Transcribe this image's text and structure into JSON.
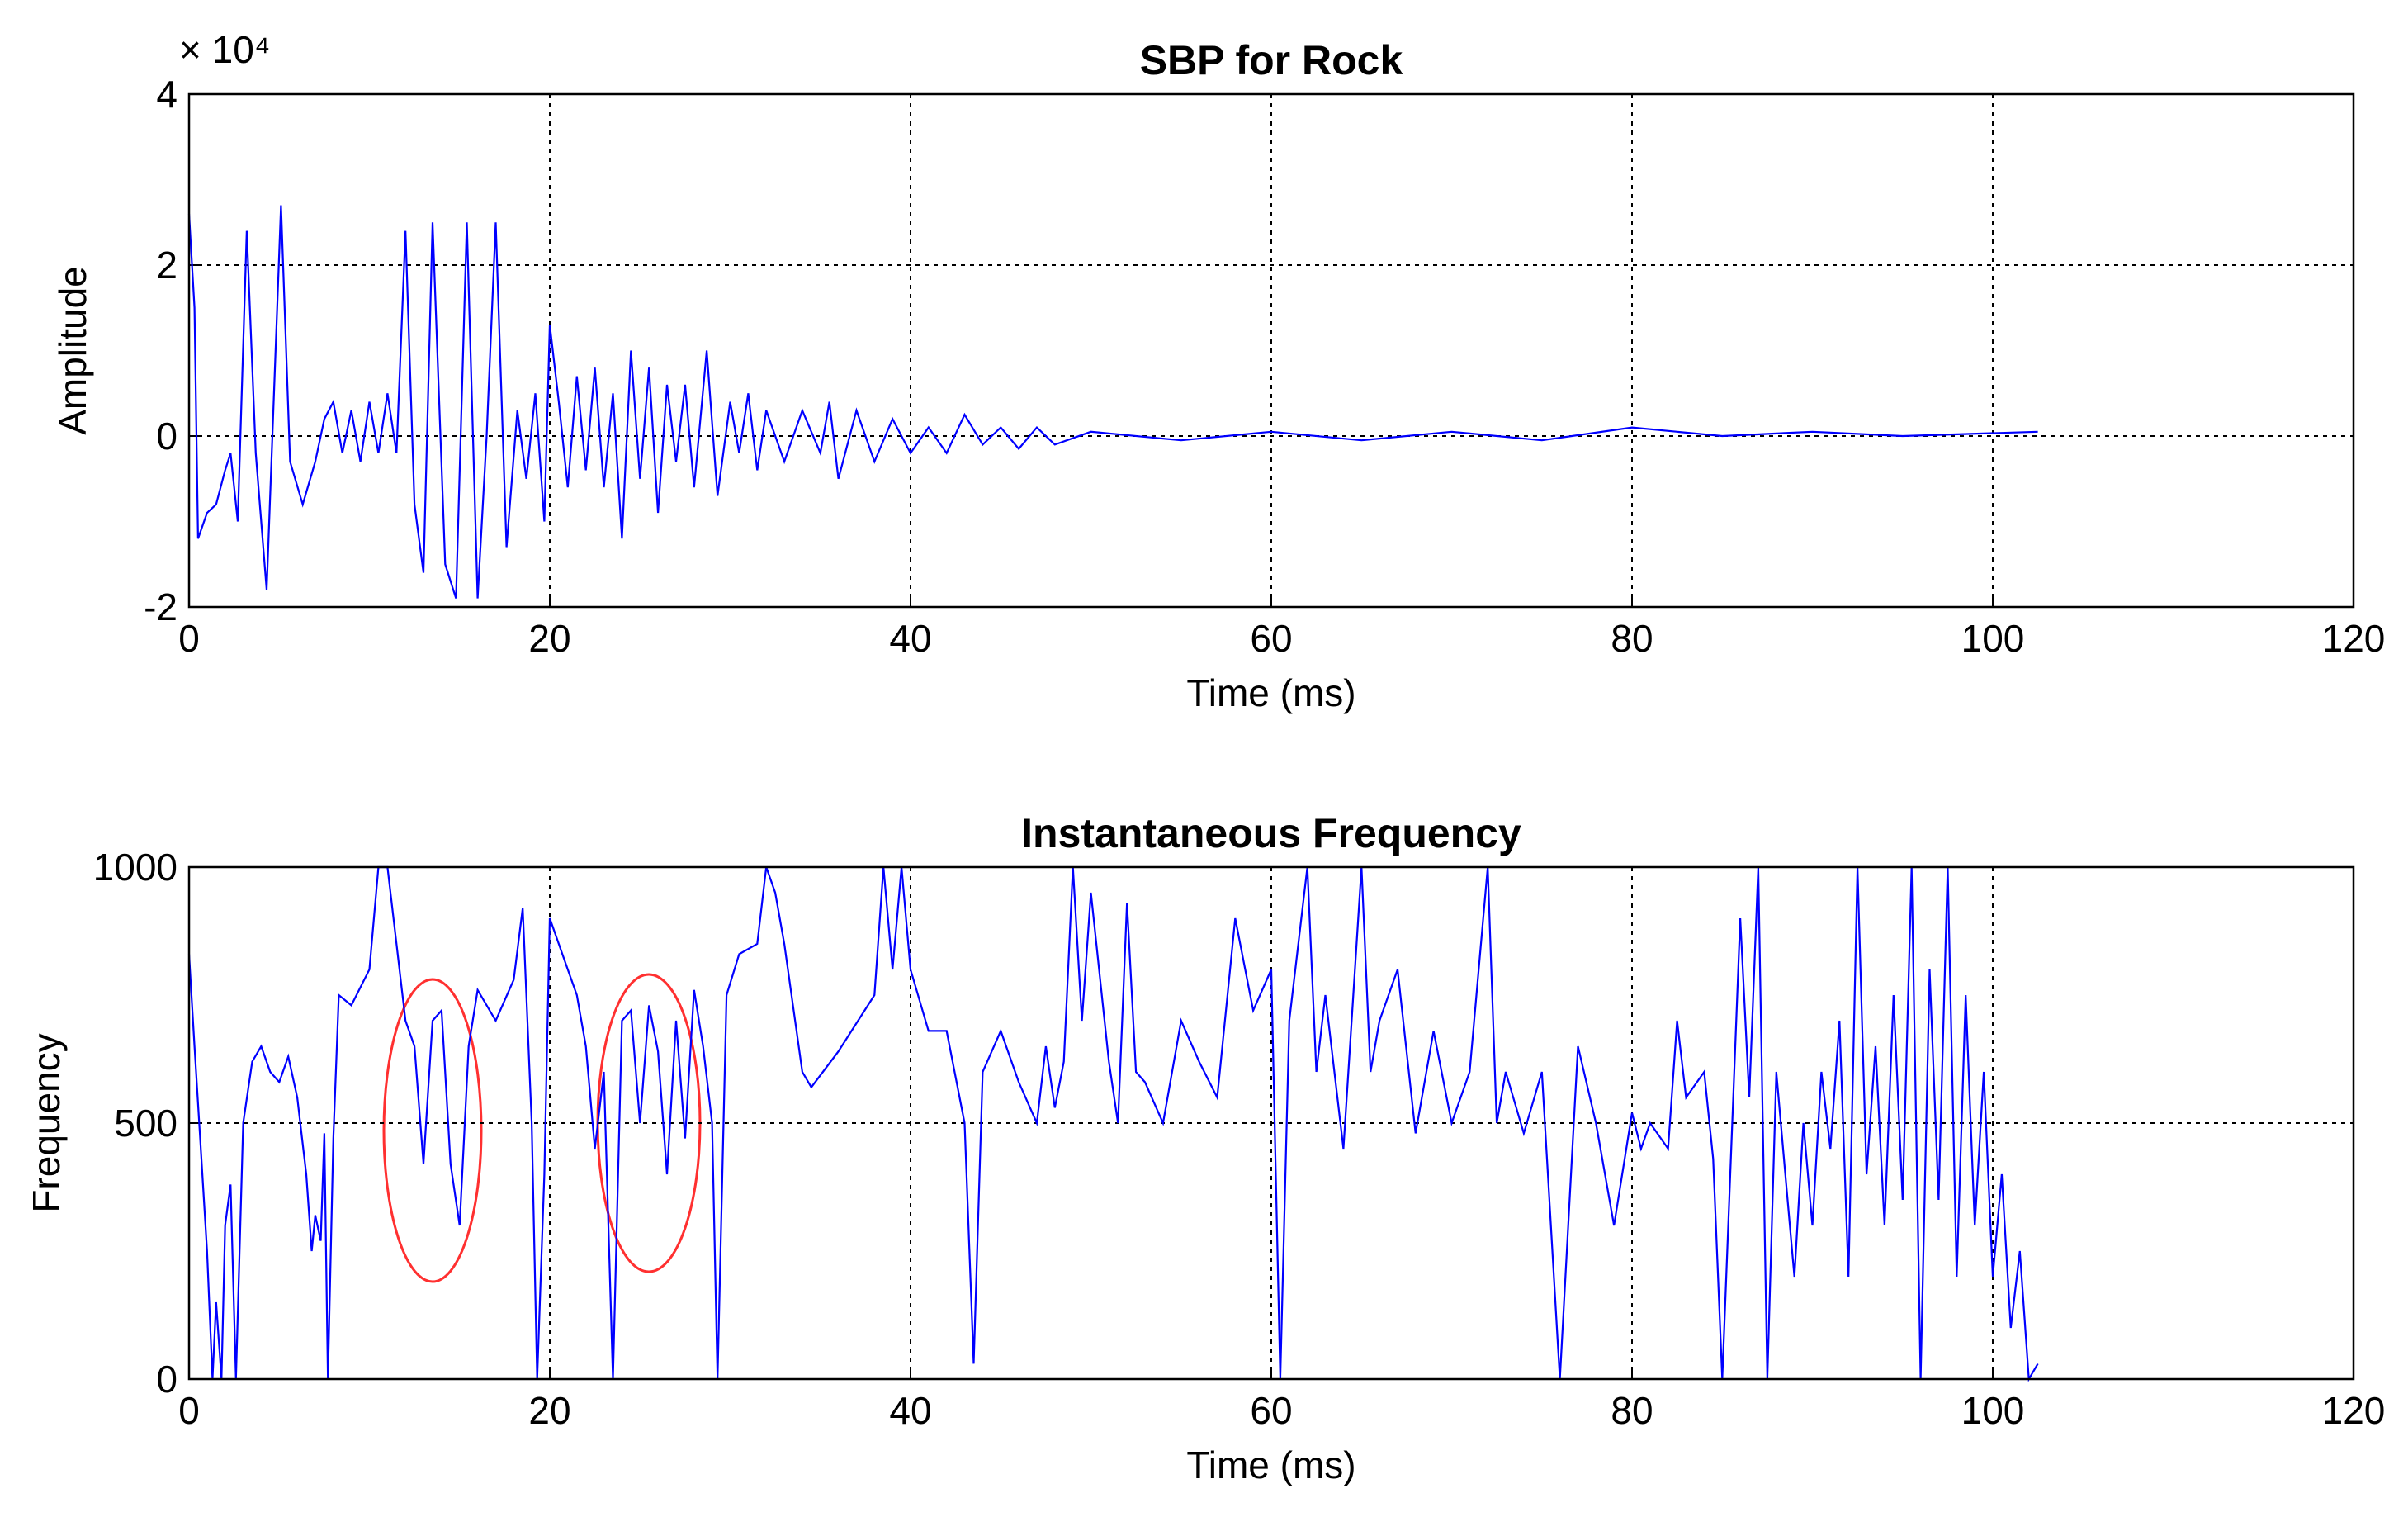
{
  "chart_data": [
    {
      "type": "line",
      "title": "SBP for Rock",
      "xlabel": "Time (ms)",
      "ylabel": "Amplitude",
      "y_exponent_label": "× 10⁴",
      "color": "#0000ff",
      "grid": true,
      "xlim": [
        0,
        120
      ],
      "xticks": [
        0,
        20,
        40,
        60,
        80,
        100,
        120
      ],
      "ylim": [
        -2,
        4
      ],
      "yticks": [
        -2,
        0,
        2,
        4
      ],
      "x": [
        0,
        0.3,
        0.5,
        1,
        1.5,
        2,
        2.3,
        2.7,
        3.2,
        3.7,
        4.3,
        5.1,
        5.6,
        6.3,
        7,
        7.5,
        8,
        8.5,
        9,
        9.5,
        10,
        10.5,
        11,
        11.5,
        12,
        12.5,
        13,
        13.5,
        14.2,
        14.8,
        15.4,
        16,
        16.5,
        17,
        17.6,
        18.2,
        18.7,
        19.2,
        19.7,
        20,
        20.5,
        21,
        21.5,
        22,
        22.5,
        23,
        23.5,
        24,
        24.5,
        25,
        25.5,
        26,
        26.5,
        27,
        27.5,
        28,
        28.7,
        29.3,
        30,
        30.5,
        31,
        31.5,
        32,
        33,
        34,
        35,
        35.5,
        36,
        37,
        38,
        39,
        40,
        41,
        42,
        43,
        44,
        45,
        46,
        47,
        48,
        50,
        55,
        60,
        65,
        70,
        75,
        80,
        85,
        90,
        95,
        102.5
      ],
      "values": [
        2.6,
        1.5,
        -1.2,
        -0.9,
        -0.8,
        -0.4,
        -0.2,
        -1.0,
        2.4,
        -0.2,
        -1.8,
        2.7,
        -0.3,
        -0.8,
        -0.3,
        0.2,
        0.4,
        -0.2,
        0.3,
        -0.3,
        0.4,
        -0.2,
        0.5,
        -0.2,
        2.4,
        -0.8,
        -1.6,
        2.5,
        -1.5,
        -1.9,
        2.5,
        -1.9,
        0.0,
        2.5,
        -1.3,
        0.3,
        -0.5,
        0.5,
        -1.0,
        1.3,
        0.4,
        -0.6,
        0.7,
        -0.4,
        0.8,
        -0.6,
        0.5,
        -1.2,
        1.0,
        -0.5,
        0.8,
        -0.9,
        0.6,
        -0.3,
        0.6,
        -0.6,
        1.0,
        -0.7,
        0.4,
        -0.2,
        0.5,
        -0.4,
        0.3,
        -0.3,
        0.3,
        -0.2,
        0.4,
        -0.5,
        0.3,
        -0.3,
        0.2,
        -0.2,
        0.1,
        -0.2,
        0.25,
        -0.1,
        0.1,
        -0.15,
        0.1,
        -0.1,
        0.05,
        -0.05,
        0.05,
        -0.05,
        0.05,
        -0.05,
        0.1,
        0,
        0.05,
        0,
        0.05
      ]
    },
    {
      "type": "line",
      "title": "Instantaneous Frequency",
      "xlabel": "Time (ms)",
      "ylabel": "Frequency",
      "color": "#0000ff",
      "grid": true,
      "xlim": [
        0,
        120
      ],
      "xticks": [
        0,
        20,
        40,
        60,
        80,
        100,
        120
      ],
      "ylim": [
        0,
        1000
      ],
      "yticks": [
        0,
        500,
        1000
      ],
      "x": [
        0,
        0.3,
        0.6,
        1,
        1.3,
        1.5,
        1.8,
        2,
        2.3,
        2.6,
        3,
        3.5,
        4,
        4.5,
        5,
        5.5,
        6,
        6.5,
        6.8,
        7,
        7.3,
        7.5,
        7.7,
        8,
        8.3,
        9,
        10,
        10.5,
        11,
        11.5,
        12,
        12.5,
        13,
        13.5,
        14,
        14.5,
        15,
        15.5,
        16,
        17,
        18,
        18.5,
        19,
        19.3,
        19.7,
        20,
        20.5,
        21,
        21.5,
        22,
        22.5,
        23,
        23.5,
        24,
        24.5,
        25,
        25.5,
        26,
        26.5,
        27,
        27.5,
        28,
        28.5,
        29,
        29.3,
        29.8,
        30.5,
        31.5,
        32,
        32.5,
        33,
        34,
        34.5,
        36,
        38,
        38.5,
        39,
        39.5,
        40,
        41,
        42,
        43,
        43.5,
        44,
        45,
        46,
        47,
        47.5,
        48,
        48.5,
        49,
        49.5,
        50,
        51,
        51.5,
        52,
        52.5,
        53,
        54,
        55,
        56,
        57,
        58,
        59,
        60,
        60.5,
        61,
        62,
        62.5,
        63,
        64,
        65,
        65.5,
        66,
        67,
        68,
        69,
        70,
        71,
        72,
        72.5,
        73,
        74,
        75,
        76,
        77,
        78,
        79,
        80,
        80.5,
        81,
        82,
        82.5,
        83,
        84,
        84.5,
        85,
        86,
        86.5,
        87,
        87.5,
        88,
        88.5,
        89,
        89.5,
        90,
        90.5,
        91,
        91.5,
        92,
        92.5,
        93,
        93.5,
        94,
        94.5,
        95,
        95.5,
        96,
        96.5,
        97,
        97.5,
        98,
        98.5,
        99,
        99.5,
        100,
        100.5,
        101,
        101.5,
        102,
        102.5
      ],
      "values": [
        830,
        650,
        480,
        250,
        0,
        150,
        0,
        300,
        380,
        0,
        500,
        620,
        650,
        600,
        580,
        630,
        550,
        400,
        250,
        320,
        270,
        480,
        0,
        470,
        750,
        730,
        800,
        1000,
        1000,
        850,
        700,
        650,
        420,
        700,
        720,
        420,
        300,
        650,
        760,
        700,
        780,
        920,
        500,
        0,
        400,
        900,
        850,
        800,
        750,
        650,
        450,
        600,
        0,
        700,
        720,
        500,
        730,
        640,
        400,
        700,
        470,
        760,
        650,
        500,
        0,
        750,
        830,
        850,
        1000,
        950,
        850,
        600,
        570,
        640,
        750,
        1000,
        800,
        1000,
        800,
        680,
        680,
        500,
        30,
        600,
        680,
        580,
        500,
        650,
        530,
        620,
        1000,
        700,
        950,
        620,
        500,
        930,
        600,
        580,
        500,
        700,
        620,
        550,
        900,
        720,
        800,
        0,
        700,
        1000,
        600,
        750,
        450,
        1000,
        600,
        700,
        800,
        480,
        680,
        500,
        600,
        1000,
        500,
        600,
        480,
        600,
        0,
        650,
        500,
        300,
        520,
        450,
        500,
        450,
        700,
        550,
        600,
        430,
        0,
        900,
        550,
        1000,
        0,
        600,
        400,
        200,
        500,
        300,
        600,
        450,
        700,
        200,
        1000,
        400,
        650,
        300,
        750,
        350,
        1000,
        0,
        800,
        350,
        1000,
        200,
        750,
        300,
        600,
        200,
        400,
        100,
        250,
        0,
        30
      ]
    }
  ]
}
